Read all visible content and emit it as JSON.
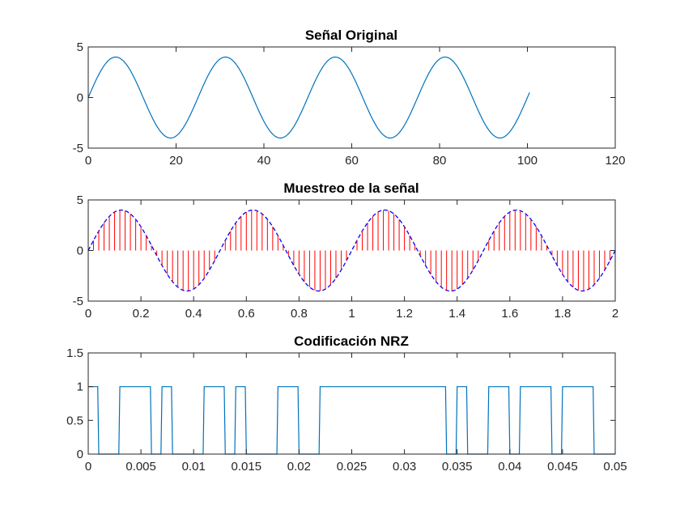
{
  "colors": {
    "original": "#0072BD",
    "sample_stems": "#FF0000",
    "sample_envelope": "#0000FF",
    "nrz": "#0072BD",
    "axes": "#262626"
  },
  "chart_data": [
    {
      "type": "line",
      "title": "Señal Original",
      "xlabel": "",
      "ylabel": "",
      "xlim": [
        0,
        120
      ],
      "ylim": [
        -5,
        5
      ],
      "xticks": [
        0,
        20,
        40,
        60,
        80,
        100,
        120
      ],
      "xtick_labels": [
        "0",
        "20",
        "40",
        "60",
        "80",
        "100",
        "120"
      ],
      "yticks": [
        -5,
        0,
        5
      ],
      "ytick_labels": [
        "-5",
        "0",
        "5"
      ],
      "series": [
        {
          "style": "solid",
          "function": "sine",
          "amplitude": 4,
          "period": 25,
          "x_range": [
            0,
            100.5
          ]
        }
      ],
      "grid": false,
      "legend": "none"
    },
    {
      "type": "line",
      "title": "Muestreo de la señal",
      "xlabel": "",
      "ylabel": "",
      "xlim": [
        0,
        2
      ],
      "ylim": [
        -5,
        5
      ],
      "xticks": [
        0,
        0.2,
        0.4,
        0.6,
        0.8,
        1,
        1.2,
        1.4,
        1.6,
        1.8,
        2
      ],
      "xtick_labels": [
        "0",
        "0.2",
        "0.4",
        "0.6",
        "0.8",
        "1",
        "1.2",
        "1.4",
        "1.6",
        "1.8",
        "2"
      ],
      "yticks": [
        -5,
        0,
        5
      ],
      "ytick_labels": [
        "-5",
        "0",
        "5"
      ],
      "series": [
        {
          "style": "dashed",
          "function": "sine",
          "amplitude": 4,
          "period": 0.5,
          "x_range": [
            0,
            2
          ]
        },
        {
          "style": "stem",
          "function": "sine",
          "amplitude": 4,
          "period": 0.5,
          "sample_step": 0.02,
          "x_range": [
            0,
            2
          ]
        }
      ],
      "grid": false,
      "legend": "none"
    },
    {
      "type": "line",
      "title": "Codificación NRZ",
      "xlabel": "",
      "ylabel": "",
      "xlim": [
        0,
        0.05
      ],
      "ylim": [
        0,
        1.5
      ],
      "xticks": [
        0,
        0.005,
        0.01,
        0.015,
        0.02,
        0.025,
        0.03,
        0.035,
        0.04,
        0.045,
        0.05
      ],
      "xtick_labels": [
        "0",
        "0.005",
        "0.01",
        "0.015",
        "0.02",
        "0.025",
        "0.03",
        "0.035",
        "0.04",
        "0.045",
        "0.05"
      ],
      "yticks": [
        0,
        0.5,
        1,
        1.5
      ],
      "ytick_labels": [
        "0",
        "0.5",
        "1",
        "1.5"
      ],
      "series": [
        {
          "style": "step",
          "x": [
            0,
            0.0009,
            0.001,
            0.0029,
            0.003,
            0.0059,
            0.006,
            0.0069,
            0.007,
            0.0079,
            0.008,
            0.0109,
            0.011,
            0.0129,
            0.013,
            0.0139,
            0.014,
            0.0149,
            0.015,
            0.0179,
            0.018,
            0.0199,
            0.02,
            0.0219,
            0.022,
            0.0249,
            0.025,
            0.0269,
            0.027,
            0.0339,
            0.034,
            0.0349,
            0.035,
            0.0359,
            0.036,
            0.0379,
            0.038,
            0.0399,
            0.04,
            0.0409,
            0.041,
            0.0439,
            0.044,
            0.0449,
            0.045,
            0.0479,
            0.048,
            0.05
          ],
          "y": [
            1,
            1,
            0,
            0,
            1,
            1,
            0,
            0,
            1,
            1,
            0,
            0,
            1,
            1,
            0,
            0,
            1,
            1,
            0,
            0,
            1,
            1,
            0,
            0,
            1,
            1,
            1,
            1,
            1,
            1,
            0,
            0,
            1,
            1,
            0,
            0,
            1,
            1,
            0,
            0,
            1,
            1,
            0,
            0,
            1,
            1,
            0,
            0
          ]
        }
      ],
      "grid": false,
      "legend": "none"
    }
  ]
}
